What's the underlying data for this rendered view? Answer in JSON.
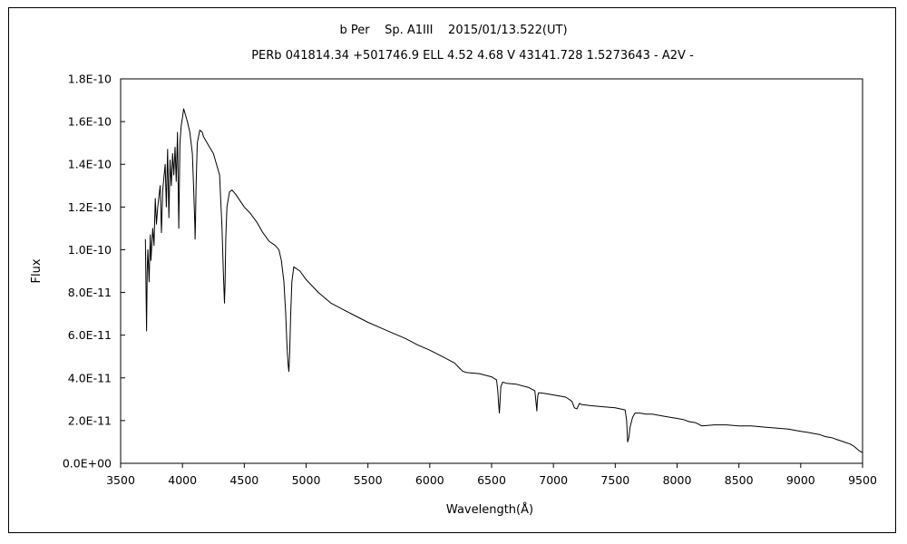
{
  "chart_data": {
    "type": "line",
    "title": "b Per    Sp. A1III    2015/01/13.522(UT)",
    "subtitle": "PERb 041814.34 +501746.9 ELL 4.52 4.68 V 43141.728 1.5273643 - A2V -",
    "xlabel": "Wavelength(Å)",
    "ylabel": "Flux",
    "xlim": [
      3500,
      9500
    ],
    "ylim": [
      0,
      1.8e-10
    ],
    "x_ticks": [
      3500,
      4000,
      4500,
      5000,
      5500,
      6000,
      6500,
      7000,
      7500,
      8000,
      8500,
      9000,
      9500
    ],
    "x_tick_labels": [
      "3500",
      "4000",
      "4500",
      "5000",
      "5500",
      "6000",
      "6500",
      "7000",
      "7500",
      "8000",
      "8500",
      "9000",
      "9500"
    ],
    "y_ticks": [
      0,
      2e-11,
      4e-11,
      6e-11,
      8e-11,
      1e-10,
      1.2e-10,
      1.4e-10,
      1.6e-10,
      1.8e-10
    ],
    "y_tick_labels": [
      "0.0E+00",
      "2.0E-11",
      "4.0E-11",
      "6.0E-11",
      "8.0E-11",
      "1.0E-10",
      "1.2E-10",
      "1.4E-10",
      "1.6E-10",
      "1.8E-10"
    ],
    "grid": false,
    "legend": "none",
    "line_color": "#000000",
    "series": [
      {
        "x": [
          3700,
          3710,
          3715,
          3720,
          3730,
          3740,
          3745,
          3760,
          3770,
          3780,
          3790,
          3800,
          3820,
          3830,
          3840,
          3860,
          3870,
          3880,
          3890,
          3900,
          3910,
          3920,
          3930,
          3940,
          3950,
          3960,
          3970,
          3980,
          3990,
          4000,
          4010,
          4020,
          4040,
          4060,
          4080,
          4090,
          4100,
          4102,
          4105,
          4110,
          4120,
          4140,
          4160,
          4170,
          4200,
          4250,
          4300,
          4320,
          4330,
          4340,
          4345,
          4350,
          4360,
          4380,
          4400,
          4430,
          4500,
          4550,
          4600,
          4650,
          4700,
          4750,
          4780,
          4800,
          4820,
          4835,
          4845,
          4855,
          4861,
          4867,
          4875,
          4885,
          4900,
          4950,
          5000,
          5100,
          5200,
          5300,
          5400,
          5500,
          5600,
          5700,
          5800,
          5850,
          5900,
          6000,
          6100,
          6200,
          6250,
          6270,
          6300,
          6400,
          6500,
          6540,
          6550,
          6558,
          6563,
          6568,
          6575,
          6590,
          6620,
          6700,
          6800,
          6850,
          6860,
          6866,
          6870,
          6875,
          6880,
          6890,
          6950,
          7000,
          7100,
          7150,
          7170,
          7190,
          7210,
          7230,
          7300,
          7400,
          7500,
          7580,
          7592,
          7600,
          7610,
          7620,
          7640,
          7660,
          7700,
          7750,
          7800,
          7900,
          8000,
          8050,
          8100,
          8150,
          8200,
          8300,
          8400,
          8500,
          8600,
          8700,
          8800,
          8900,
          9000,
          9050,
          9100,
          9150,
          9200,
          9250,
          9300,
          9350,
          9400,
          9430,
          9450,
          9470,
          9500
        ],
        "y": [
          1.05e-10,
          6.2e-11,
          9e-11,
          1e-10,
          8.5e-11,
          1.07e-10,
          9.5e-11,
          1.1e-10,
          1.02e-10,
          1.24e-10,
          1.12e-10,
          1.2e-10,
          1.3e-10,
          1.08e-10,
          1.28e-10,
          1.4e-10,
          1.2e-10,
          1.47e-10,
          1.15e-10,
          1.42e-10,
          1.3e-10,
          1.45e-10,
          1.35e-10,
          1.48e-10,
          1.32e-10,
          1.55e-10,
          1.1e-10,
          1.5e-10,
          1.58e-10,
          1.62e-10,
          1.66e-10,
          1.64e-10,
          1.6e-10,
          1.55e-10,
          1.45e-10,
          1.3e-10,
          1.12e-10,
          1.05e-10,
          1.12e-10,
          1.3e-10,
          1.5e-10,
          1.56e-10,
          1.55e-10,
          1.53e-10,
          1.5e-10,
          1.45e-10,
          1.35e-10,
          1.1e-10,
          9e-11,
          7.5e-11,
          8.5e-11,
          1.05e-10,
          1.2e-10,
          1.27e-10,
          1.28e-10,
          1.26e-10,
          1.2e-10,
          1.17e-10,
          1.13e-10,
          1.08e-10,
          1.04e-10,
          1.02e-10,
          1e-10,
          9.5e-11,
          8.5e-11,
          7e-11,
          5.5e-11,
          4.6e-11,
          4.3e-11,
          5.2e-11,
          7e-11,
          8.5e-11,
          9.2e-11,
          9e-11,
          8.6e-11,
          8e-11,
          7.5e-11,
          7.2e-11,
          6.9e-11,
          6.6e-11,
          6.35e-11,
          6.1e-11,
          5.85e-11,
          5.7e-11,
          5.55e-11,
          5.3e-11,
          5e-11,
          4.7e-11,
          4.4e-11,
          4.3e-11,
          4.25e-11,
          4.2e-11,
          4.05e-11,
          3.9e-11,
          3.4e-11,
          2.7e-11,
          2.35e-11,
          2.9e-11,
          3.6e-11,
          3.8e-11,
          3.75e-11,
          3.7e-11,
          3.55e-11,
          3.4e-11,
          2.8e-11,
          2.45e-11,
          2.9e-11,
          3.2e-11,
          3.3e-11,
          3.3e-11,
          3.25e-11,
          3.2e-11,
          3.1e-11,
          2.9e-11,
          2.6e-11,
          2.55e-11,
          2.8e-11,
          2.75e-11,
          2.7e-11,
          2.65e-11,
          2.6e-11,
          2.5e-11,
          2e-11,
          1e-11,
          1.2e-11,
          1.7e-11,
          2.15e-11,
          2.35e-11,
          2.35e-11,
          2.3e-11,
          2.3e-11,
          2.2e-11,
          2.1e-11,
          2.05e-11,
          1.95e-11,
          1.9e-11,
          1.75e-11,
          1.8e-11,
          1.8e-11,
          1.75e-11,
          1.75e-11,
          1.7e-11,
          1.65e-11,
          1.6e-11,
          1.5e-11,
          1.45e-11,
          1.4e-11,
          1.35e-11,
          1.25e-11,
          1.2e-11,
          1.1e-11,
          1e-11,
          9e-12,
          8e-12,
          7e-12,
          6e-12,
          5e-12
        ]
      }
    ]
  }
}
